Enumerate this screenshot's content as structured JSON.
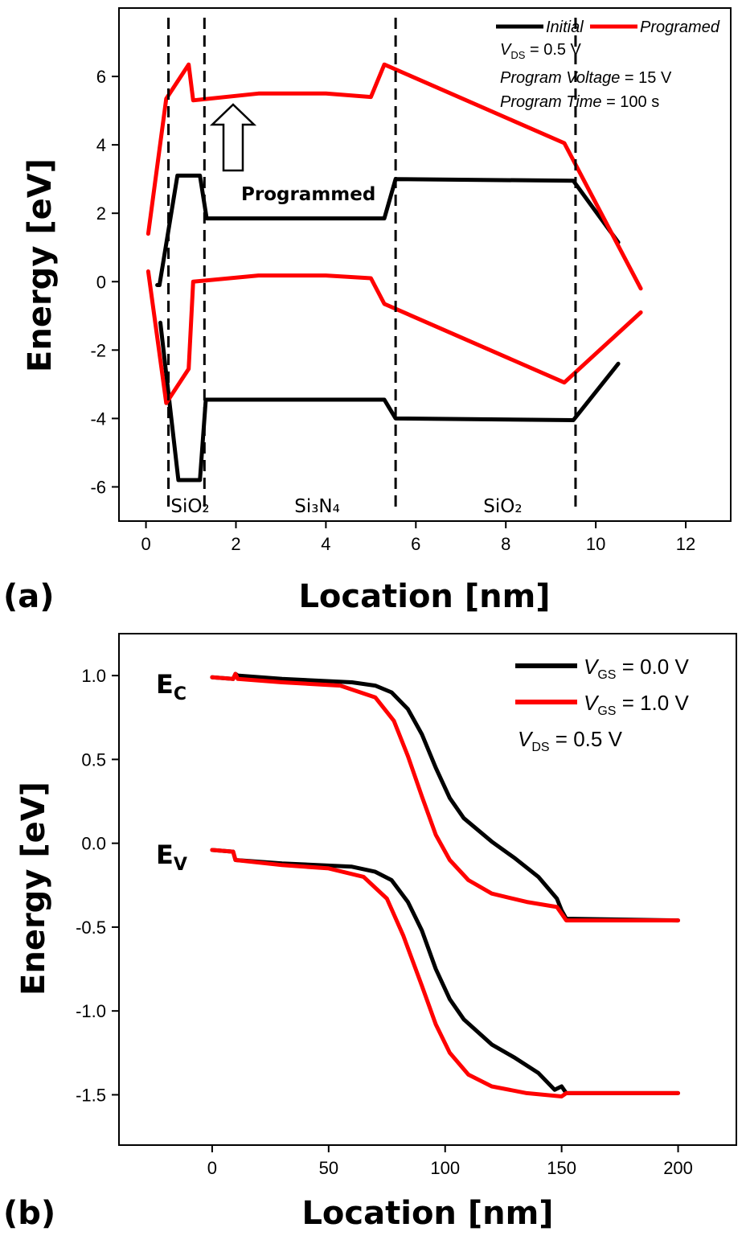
{
  "chart_data": [
    {
      "panel_label": "(a)",
      "type": "line",
      "xlabel": "Location [nm]",
      "ylabel": "Energy [eV]",
      "xlim": [
        -0.6,
        13
      ],
      "ylim": [
        -7,
        8
      ],
      "xticks": [
        "0",
        "2",
        "4",
        "6",
        "8",
        "10",
        "12"
      ],
      "yticks": [
        "-6",
        "-4",
        "-2",
        "0",
        "2",
        "4",
        "6"
      ],
      "legend_position": "top-right",
      "series": [
        {
          "name": "Initial",
          "color": "#000000",
          "lines": [
            [
              [
                0.25,
                -0.1
              ],
              [
                0.3,
                -0.1
              ],
              [
                0.7,
                3.1
              ],
              [
                1.2,
                3.1
              ],
              [
                1.35,
                1.85
              ],
              [
                5.3,
                1.85
              ],
              [
                5.55,
                3.0
              ],
              [
                9.5,
                2.95
              ],
              [
                10.5,
                1.15
              ]
            ],
            [
              [
                0.32,
                -1.2
              ],
              [
                0.72,
                -5.8
              ],
              [
                1.2,
                -5.8
              ],
              [
                1.33,
                -3.45
              ],
              [
                5.3,
                -3.45
              ],
              [
                5.55,
                -4.0
              ],
              [
                9.5,
                -4.05
              ],
              [
                10.5,
                -2.4
              ]
            ]
          ]
        },
        {
          "name": "Programed",
          "color": "#ff0000",
          "lines": [
            [
              [
                0.05,
                1.4
              ],
              [
                0.45,
                5.35
              ],
              [
                0.95,
                6.35
              ],
              [
                1.05,
                5.3
              ],
              [
                2.5,
                5.5
              ],
              [
                4.0,
                5.5
              ],
              [
                5.0,
                5.4
              ],
              [
                5.3,
                6.35
              ],
              [
                9.3,
                4.05
              ],
              [
                11.0,
                -0.2
              ]
            ],
            [
              [
                0.05,
                0.3
              ],
              [
                0.45,
                -3.55
              ],
              [
                0.95,
                -2.55
              ],
              [
                1.05,
                0.0
              ],
              [
                2.5,
                0.18
              ],
              [
                4.0,
                0.18
              ],
              [
                5.0,
                0.1
              ],
              [
                5.3,
                -0.65
              ],
              [
                9.3,
                -2.95
              ],
              [
                11.0,
                -0.9
              ]
            ]
          ]
        }
      ],
      "dividers_x": [
        0.5,
        1.3,
        5.55,
        9.55
      ],
      "regions": [
        {
          "label": "SiO₂",
          "x": 0.55
        },
        {
          "label": "Si₃N₄",
          "x": 3.3
        },
        {
          "label": "SiO₂",
          "x": 7.5
        }
      ],
      "legend_notes": [
        "V_DS = 0.5 V",
        "Program Voltage = 15 V",
        "Program Time = 100 s"
      ],
      "annotation": {
        "text": "Programmed",
        "arrow": "up"
      }
    },
    {
      "panel_label": "(b)",
      "type": "line",
      "xlabel": "Location [nm]",
      "ylabel": "Energy [eV]",
      "xlim": [
        -40,
        225
      ],
      "ylim": [
        -1.8,
        1.25
      ],
      "xticks": [
        "0",
        "50",
        "100",
        "150",
        "200"
      ],
      "yticks": [
        "1.0",
        "0.5",
        "0.0",
        "-0.5",
        "-1.0",
        "-1.5"
      ],
      "legend_position": "top-right",
      "band_labels": [
        "E",
        "C",
        "E",
        "V"
      ],
      "series": [
        {
          "name": "V_GS = 0.0 V",
          "color": "#000000",
          "lines": [
            [
              [
                0,
                0.99
              ],
              [
                9,
                0.98
              ],
              [
                10,
                1.01
              ],
              [
                11,
                1.0
              ],
              [
                30,
                0.98
              ],
              [
                60,
                0.96
              ],
              [
                70,
                0.94
              ],
              [
                77,
                0.9
              ],
              [
                84,
                0.8
              ],
              [
                90,
                0.65
              ],
              [
                96,
                0.45
              ],
              [
                102,
                0.27
              ],
              [
                108,
                0.15
              ],
              [
                120,
                0.01
              ],
              [
                130,
                -0.09
              ],
              [
                140,
                -0.2
              ],
              [
                148,
                -0.33
              ],
              [
                150,
                -0.4
              ],
              [
                152,
                -0.45
              ],
              [
                200,
                -0.46
              ]
            ],
            [
              [
                0,
                -0.04
              ],
              [
                9,
                -0.05
              ],
              [
                10,
                -0.1
              ],
              [
                30,
                -0.12
              ],
              [
                60,
                -0.14
              ],
              [
                70,
                -0.17
              ],
              [
                77,
                -0.22
              ],
              [
                84,
                -0.35
              ],
              [
                90,
                -0.52
              ],
              [
                96,
                -0.75
              ],
              [
                102,
                -0.93
              ],
              [
                108,
                -1.05
              ],
              [
                120,
                -1.2
              ],
              [
                130,
                -1.28
              ],
              [
                140,
                -1.37
              ],
              [
                147,
                -1.47
              ],
              [
                150,
                -1.45
              ],
              [
                152,
                -1.49
              ],
              [
                200,
                -1.49
              ]
            ]
          ]
        },
        {
          "name": "V_GS = 1.0 V",
          "color": "#ff0000",
          "lines": [
            [
              [
                0,
                0.99
              ],
              [
                9,
                0.98
              ],
              [
                10,
                1.01
              ],
              [
                11,
                0.98
              ],
              [
                30,
                0.96
              ],
              [
                55,
                0.94
              ],
              [
                70,
                0.87
              ],
              [
                78,
                0.73
              ],
              [
                84,
                0.52
              ],
              [
                90,
                0.28
              ],
              [
                96,
                0.05
              ],
              [
                102,
                -0.1
              ],
              [
                110,
                -0.22
              ],
              [
                120,
                -0.3
              ],
              [
                135,
                -0.35
              ],
              [
                148,
                -0.38
              ],
              [
                150,
                -0.42
              ],
              [
                152,
                -0.46
              ],
              [
                200,
                -0.46
              ]
            ],
            [
              [
                0,
                -0.04
              ],
              [
                9,
                -0.05
              ],
              [
                10,
                -0.1
              ],
              [
                30,
                -0.13
              ],
              [
                50,
                -0.15
              ],
              [
                65,
                -0.2
              ],
              [
                75,
                -0.33
              ],
              [
                82,
                -0.55
              ],
              [
                90,
                -0.85
              ],
              [
                96,
                -1.08
              ],
              [
                102,
                -1.25
              ],
              [
                110,
                -1.38
              ],
              [
                120,
                -1.45
              ],
              [
                135,
                -1.49
              ],
              [
                150,
                -1.51
              ],
              [
                152,
                -1.49
              ],
              [
                200,
                -1.49
              ]
            ]
          ]
        }
      ],
      "legend_notes": [
        "V_DS = 0.5 V"
      ]
    }
  ]
}
